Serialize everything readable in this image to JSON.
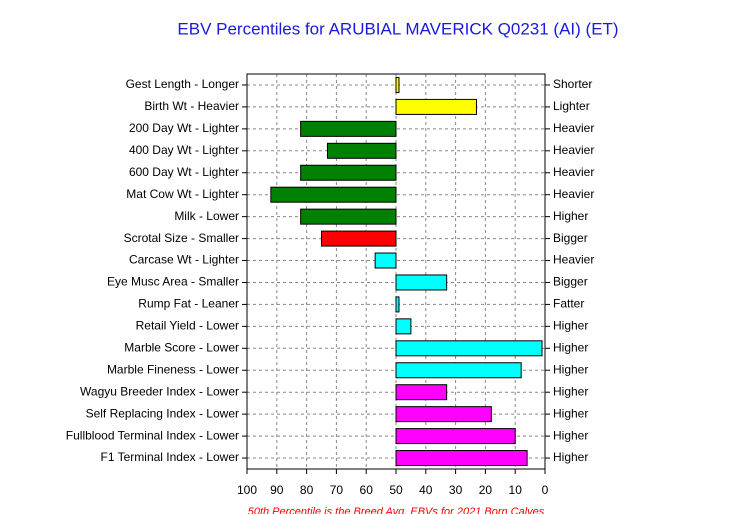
{
  "chart_data": {
    "type": "bar",
    "orientation": "horizontal",
    "title": "EBV Percentiles for ARUBIAL MAVERICK Q0231 (AI) (ET)",
    "footnote": "50th Percentile is the Breed Avg. EBVs for 2021 Born Calves",
    "categories": [
      "Gest Length - Longer",
      "Birth Wt - Heavier",
      "200 Day Wt - Lighter",
      "400 Day Wt - Lighter",
      "600 Day Wt - Lighter",
      "Mat Cow Wt - Lighter",
      "Milk - Lower",
      "Scrotal Size - Smaller",
      "Carcase Wt - Lighter",
      "Eye Musc Area - Smaller",
      "Rump Fat - Leaner",
      "Retail Yield - Lower",
      "Marble Score - Lower",
      "Marble Fineness - Lower",
      "Wagyu Breeder Index - Lower",
      "Self Replacing Index - Lower",
      "Fullblood Terminal Index - Lower",
      "F1 Terminal Index - Lower"
    ],
    "right_labels": [
      "Shorter",
      "Lighter",
      "Heavier",
      "Heavier",
      "Heavier",
      "Heavier",
      "Higher",
      "Bigger",
      "Heavier",
      "Bigger",
      "Fatter",
      "Higher",
      "Higher",
      "Higher",
      "Higher",
      "Higher",
      "Higher",
      "Higher"
    ],
    "values": [
      49,
      23,
      82,
      73,
      82,
      92,
      82,
      75,
      57,
      33,
      49,
      45,
      1,
      8,
      33,
      18,
      10,
      6
    ],
    "colors": [
      "#ffff00",
      "#ffff00",
      "#008000",
      "#008000",
      "#008000",
      "#008000",
      "#008000",
      "#ff0000",
      "#00ffff",
      "#00ffff",
      "#00ffff",
      "#00ffff",
      "#00ffff",
      "#00ffff",
      "#ff00ff",
      "#ff00ff",
      "#ff00ff",
      "#ff00ff"
    ],
    "base": 50,
    "xlim": [
      100,
      0
    ],
    "xticks": [
      100,
      90,
      80,
      70,
      60,
      50,
      40,
      30,
      20,
      10,
      0
    ],
    "grid": true
  }
}
